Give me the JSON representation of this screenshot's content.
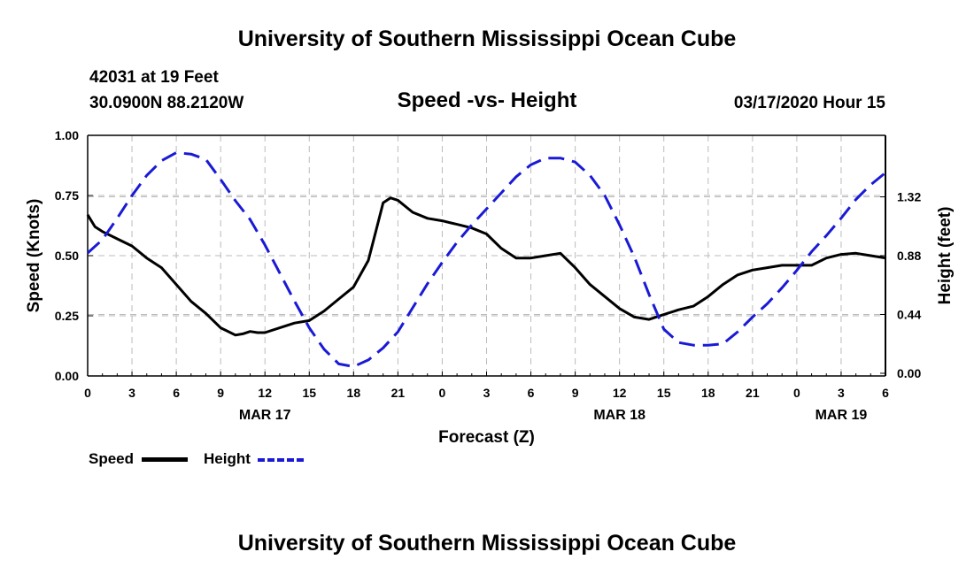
{
  "header": {
    "top_title": "University of Southern Mississippi Ocean Cube",
    "station": "42031 at 19 Feet",
    "coords": "30.0900N 88.2120W",
    "date": "03/17/2020 Hour 15",
    "bottom_title": "University of Southern Mississippi Ocean Cube"
  },
  "legend": {
    "speed_label": "Speed",
    "height_label": "Height"
  },
  "colors": {
    "speed": "#000000",
    "height": "#1a1ad6",
    "grid": "#bbbbbb"
  },
  "chart_data": {
    "type": "line",
    "title": "Speed -vs- Height",
    "xlabel": "Forecast (Z)",
    "ylabel": "Speed (Knots)",
    "y2label": "Height (feet)",
    "xlim": [
      0,
      54
    ],
    "ylim": [
      0,
      1.0
    ],
    "y2lim": [
      -0.02,
      1.78
    ],
    "yticks": [
      0,
      0.25,
      0.5,
      0.75,
      1.0
    ],
    "ytick_labels": [
      "0.00",
      "0.25",
      "0.50",
      "0.75",
      "1.00"
    ],
    "y2ticks": [
      0.0,
      0.44,
      0.88,
      1.32
    ],
    "y2tick_labels": [
      "0.00",
      "0.44",
      "0.88",
      "1.32"
    ],
    "xticks": [
      0,
      3,
      6,
      9,
      12,
      15,
      18,
      21,
      24,
      27,
      30,
      33,
      36,
      39,
      42,
      45,
      48,
      51,
      54
    ],
    "xtick_labels": [
      "0",
      "3",
      "6",
      "9",
      "12",
      "15",
      "18",
      "21",
      "0",
      "3",
      "6",
      "9",
      "12",
      "15",
      "18",
      "21",
      "0",
      "3",
      "6"
    ],
    "date_labels": [
      {
        "x": 12,
        "label": "MAR 17"
      },
      {
        "x": 36,
        "label": "MAR 18"
      },
      {
        "x": 51,
        "label": "MAR 19"
      }
    ],
    "series": [
      {
        "name": "Speed",
        "axis": "left",
        "style": "solid",
        "x": [
          0,
          0.5,
          1,
          2,
          3,
          4,
          5,
          6,
          7,
          8,
          9,
          10,
          10.5,
          11,
          11.5,
          12,
          13,
          14,
          15,
          16,
          17,
          18,
          19,
          19.5,
          20,
          20.5,
          21,
          22,
          23,
          24,
          25,
          26,
          27,
          28,
          29,
          30,
          31,
          32,
          33,
          34,
          35,
          36,
          37,
          38,
          39,
          40,
          41,
          42,
          43,
          44,
          45,
          46,
          47,
          48,
          49,
          50,
          51,
          52,
          53,
          54
        ],
        "values": [
          0.67,
          0.62,
          0.6,
          0.57,
          0.54,
          0.49,
          0.45,
          0.38,
          0.31,
          0.26,
          0.2,
          0.17,
          0.175,
          0.185,
          0.18,
          0.18,
          0.2,
          0.22,
          0.23,
          0.27,
          0.32,
          0.37,
          0.48,
          0.6,
          0.72,
          0.74,
          0.73,
          0.68,
          0.655,
          0.645,
          0.63,
          0.615,
          0.59,
          0.53,
          0.49,
          0.49,
          0.5,
          0.51,
          0.45,
          0.38,
          0.33,
          0.28,
          0.245,
          0.235,
          0.255,
          0.275,
          0.29,
          0.33,
          0.38,
          0.42,
          0.44,
          0.45,
          0.46,
          0.46,
          0.46,
          0.49,
          0.505,
          0.51,
          0.5,
          0.49
        ]
      },
      {
        "name": "Height",
        "axis": "right",
        "style": "dashed",
        "x": [
          0,
          1,
          2,
          3,
          4,
          5,
          6,
          7,
          8,
          9,
          10,
          11,
          12,
          13,
          14,
          15,
          16,
          17,
          18,
          19,
          20,
          21,
          22,
          23,
          24,
          25,
          26,
          27,
          28,
          29,
          30,
          31,
          32,
          33,
          34,
          35,
          36,
          37,
          38,
          39,
          40,
          41,
          42,
          43,
          44,
          45,
          46,
          47,
          48,
          49,
          50,
          51,
          52,
          53,
          54
        ],
        "values": [
          0.9,
          1.0,
          1.16,
          1.33,
          1.48,
          1.59,
          1.65,
          1.64,
          1.6,
          1.45,
          1.29,
          1.15,
          0.96,
          0.75,
          0.54,
          0.34,
          0.18,
          0.07,
          0.05,
          0.1,
          0.19,
          0.31,
          0.49,
          0.67,
          0.83,
          0.98,
          1.11,
          1.23,
          1.35,
          1.47,
          1.56,
          1.61,
          1.61,
          1.58,
          1.48,
          1.33,
          1.11,
          0.87,
          0.59,
          0.33,
          0.23,
          0.21,
          0.21,
          0.22,
          0.31,
          0.42,
          0.52,
          0.64,
          0.77,
          0.91,
          1.03,
          1.16,
          1.3,
          1.41,
          1.5
        ]
      }
    ]
  }
}
